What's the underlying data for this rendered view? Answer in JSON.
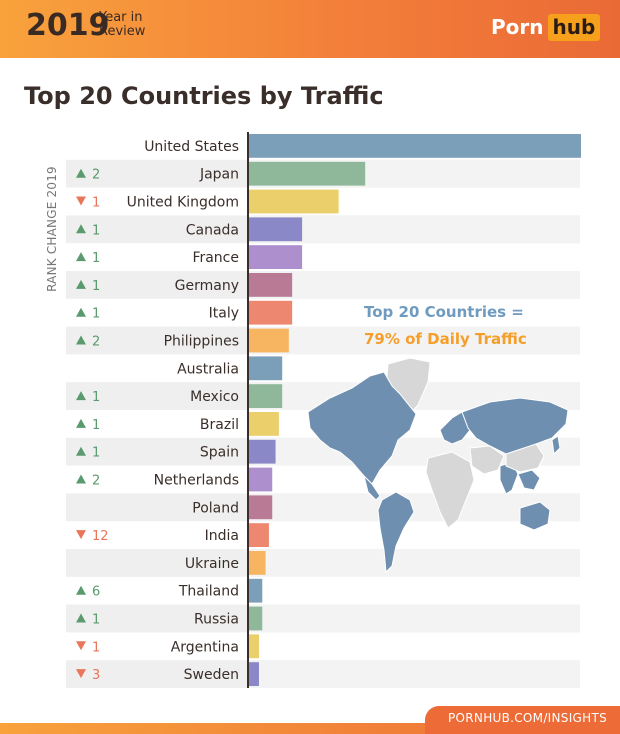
{
  "header": {
    "year": "2019",
    "year_in": "Year in",
    "review": "Review",
    "logo_porn": "Porn",
    "logo_hub": "hub"
  },
  "title": "Top 20 Countries by Traffic",
  "side_label": "RANK CHANGE 2019",
  "callout": {
    "line1": "Top 20 Countries =",
    "line2": "79% of Daily Traffic"
  },
  "footer": {
    "url": "PORNHUB.COM/INSIGHTS"
  },
  "colors": {
    "up": "#5a9a6e",
    "down": "#e8765a",
    "bar_cycle": [
      "#7b9fb9",
      "#8fb89a",
      "#eacf6b",
      "#8a88c6",
      "#ad8fce",
      "#b87a95",
      "#ee8770",
      "#f7b562"
    ],
    "map_highlight": "#6f8fb0",
    "map_other": "#d7d7d7"
  },
  "chart_data": {
    "type": "bar",
    "orientation": "horizontal",
    "title": "Top 20 Countries by Traffic",
    "categories": [
      "United States",
      "Japan",
      "United Kingdom",
      "Canada",
      "France",
      "Germany",
      "Italy",
      "Philippines",
      "Australia",
      "Mexico",
      "Brazil",
      "Spain",
      "Netherlands",
      "Poland",
      "India",
      "Ukraine",
      "Thailand",
      "Russia",
      "Argentina",
      "Sweden"
    ],
    "values": [
      100,
      35,
      27,
      16,
      16,
      13,
      13,
      12,
      10,
      10,
      9,
      8,
      7,
      7,
      6,
      5,
      4,
      4,
      3,
      3
    ],
    "xlim": [
      0,
      100
    ],
    "grid": false,
    "rank_change": [
      {
        "dir": "",
        "value": ""
      },
      {
        "dir": "up",
        "value": "2"
      },
      {
        "dir": "down",
        "value": "1"
      },
      {
        "dir": "up",
        "value": "1"
      },
      {
        "dir": "up",
        "value": "1"
      },
      {
        "dir": "up",
        "value": "1"
      },
      {
        "dir": "up",
        "value": "1"
      },
      {
        "dir": "up",
        "value": "2"
      },
      {
        "dir": "",
        "value": ""
      },
      {
        "dir": "up",
        "value": "1"
      },
      {
        "dir": "up",
        "value": "1"
      },
      {
        "dir": "up",
        "value": "1"
      },
      {
        "dir": "up",
        "value": "2"
      },
      {
        "dir": "",
        "value": ""
      },
      {
        "dir": "down",
        "value": "12"
      },
      {
        "dir": "",
        "value": ""
      },
      {
        "dir": "up",
        "value": "6"
      },
      {
        "dir": "up",
        "value": "1"
      },
      {
        "dir": "down",
        "value": "1"
      },
      {
        "dir": "down",
        "value": "3"
      }
    ]
  }
}
